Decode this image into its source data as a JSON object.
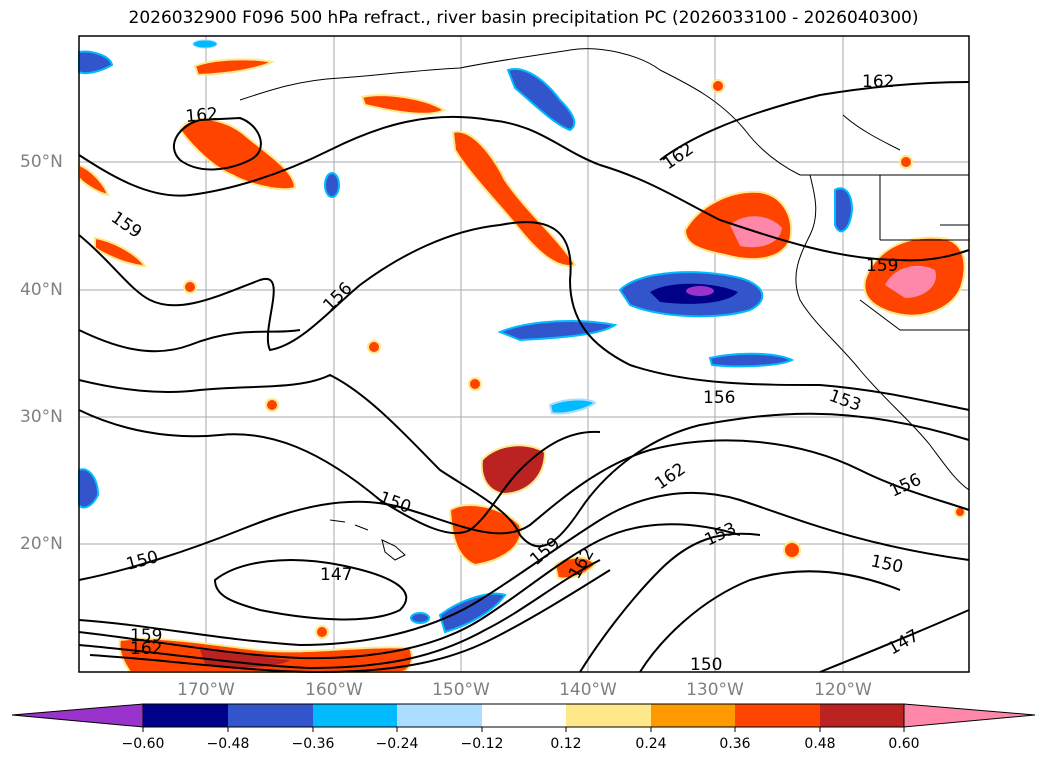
{
  "title": "2026032900 F096 500 hPa refract., river basin precipitation PC (2026033100 - 2026040300)",
  "lat_labels": [
    "50°N",
    "40°N",
    "30°N",
    "20°N"
  ],
  "lon_labels": [
    "170°W",
    "160°W",
    "150°W",
    "140°W",
    "130°W",
    "120°W"
  ],
  "contour_labels": [
    "162",
    "162",
    "162",
    "159",
    "159",
    "159",
    "156",
    "156",
    "156",
    "153",
    "153",
    "150",
    "150",
    "150",
    "150",
    "147",
    "147",
    "159",
    "162",
    "162",
    "162"
  ],
  "colorbar": {
    "ticks": [
      "−0.60",
      "−0.48",
      "−0.36",
      "−0.24",
      "−0.12",
      "0.12",
      "0.24",
      "0.36",
      "0.48",
      "0.60"
    ],
    "colors": [
      "#9933cc",
      "#000088",
      "#3355cc",
      "#00bbff",
      "#aaddff",
      "#ffffff",
      "#ffe88a",
      "#ff9900",
      "#ff4400",
      "#bb2222",
      "#ff88aa"
    ]
  }
}
